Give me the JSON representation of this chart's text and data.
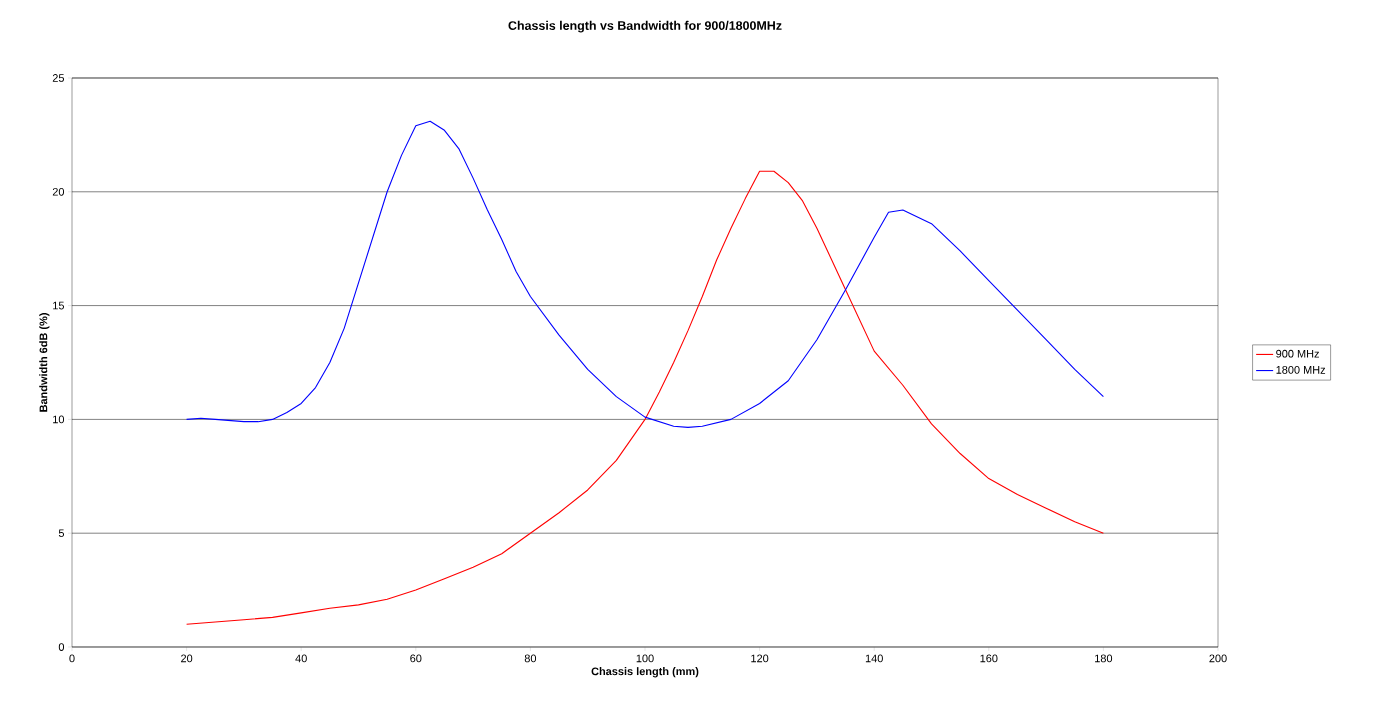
{
  "chart_data": {
    "type": "line",
    "title": "Chassis length vs Bandwidth for 900/1800MHz",
    "xlabel": "Chassis length (mm)",
    "ylabel": "Bandwidth 6dB (%)",
    "xlim": [
      0,
      200
    ],
    "xticks": [
      0,
      20,
      40,
      60,
      80,
      100,
      120,
      140,
      160,
      180,
      200
    ],
    "ylim": [
      0,
      25
    ],
    "yticks": [
      0,
      5,
      10,
      15,
      20,
      25
    ],
    "grid": "y",
    "legend": "right",
    "marker": "none",
    "line_style": "solid",
    "series": [
      {
        "name": "900 MHz",
        "color": "#ff0000",
        "x": [
          20,
          25,
          30,
          35,
          40,
          45,
          50,
          55,
          60,
          65,
          70,
          75,
          80,
          85,
          90,
          95,
          100,
          102.5,
          105,
          107.5,
          110,
          112.5,
          115,
          117.5,
          120,
          122.5,
          125,
          127.5,
          130,
          135,
          140,
          145,
          150,
          155,
          160,
          165,
          170,
          175,
          180
        ],
        "values": [
          1.0,
          1.1,
          1.2,
          1.3,
          1.5,
          1.7,
          1.85,
          2.1,
          2.5,
          3.0,
          3.5,
          4.1,
          5.0,
          5.9,
          6.9,
          8.2,
          10.0,
          11.2,
          12.5,
          13.9,
          15.4,
          17.0,
          18.4,
          19.7,
          20.9,
          20.9,
          20.4,
          19.6,
          18.4,
          15.7,
          13.0,
          11.5,
          9.8,
          8.5,
          7.4,
          6.7,
          6.1,
          5.5,
          5.0
        ]
      },
      {
        "name": "1800 MHz",
        "color": "#0000ff",
        "x": [
          20,
          22.5,
          25,
          30,
          32.5,
          35,
          37.5,
          40,
          42.5,
          45,
          47.5,
          50,
          52.5,
          55,
          57.5,
          60,
          62.5,
          65,
          67.5,
          70,
          72.5,
          75,
          77.5,
          80,
          85,
          90,
          95,
          100,
          105,
          107.5,
          110,
          115,
          120,
          125,
          130,
          135,
          140,
          142.5,
          145,
          150,
          155,
          160,
          165,
          170,
          175,
          180
        ],
        "values": [
          10.0,
          10.05,
          10.0,
          9.9,
          9.9,
          10.0,
          10.3,
          10.7,
          11.4,
          12.5,
          14.0,
          16.0,
          18.0,
          20.0,
          21.6,
          22.9,
          23.1,
          22.7,
          21.9,
          20.6,
          19.2,
          17.9,
          16.5,
          15.4,
          13.7,
          12.2,
          11.0,
          10.1,
          9.7,
          9.65,
          9.7,
          10.0,
          10.7,
          11.7,
          13.5,
          15.7,
          18.0,
          19.1,
          19.2,
          18.6,
          17.4,
          16.1,
          14.8,
          13.5,
          12.2,
          11.0
        ]
      }
    ]
  }
}
